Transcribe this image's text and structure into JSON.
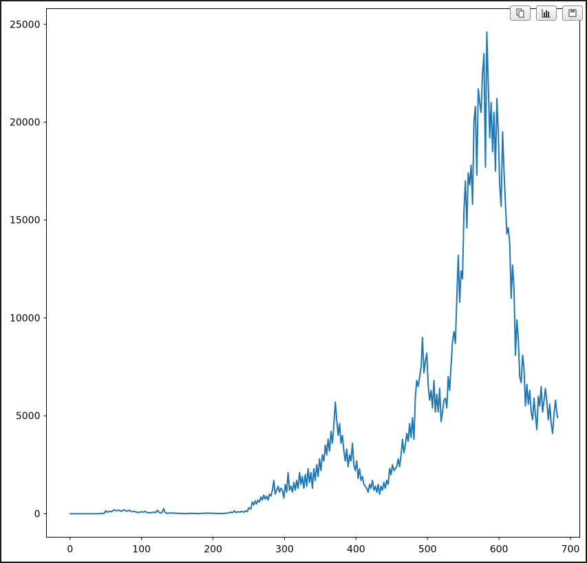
{
  "toolbar": {
    "buttons": [
      {
        "icon": "copy-icon"
      },
      {
        "icon": "bar-chart-icon"
      },
      {
        "icon": "save-icon"
      }
    ]
  },
  "chart_data": {
    "type": "line",
    "title": "",
    "xlabel": "",
    "ylabel": "",
    "xlim": [
      -33,
      713
    ],
    "ylim": [
      -1200,
      25800
    ],
    "xticks": [
      0,
      100,
      200,
      300,
      400,
      500,
      600,
      700
    ],
    "yticks": [
      0,
      5000,
      10000,
      15000,
      20000,
      25000
    ],
    "grid": false,
    "color": "#1f77b4",
    "series": [
      {
        "points": [
          [
            0,
            0
          ],
          [
            10,
            0
          ],
          [
            20,
            0
          ],
          [
            30,
            0
          ],
          [
            40,
            0
          ],
          [
            48,
            20
          ],
          [
            50,
            150
          ],
          [
            52,
            80
          ],
          [
            55,
            120
          ],
          [
            58,
            100
          ],
          [
            62,
            200
          ],
          [
            65,
            150
          ],
          [
            68,
            180
          ],
          [
            72,
            120
          ],
          [
            75,
            200
          ],
          [
            78,
            160
          ],
          [
            80,
            130
          ],
          [
            83,
            180
          ],
          [
            86,
            100
          ],
          [
            90,
            120
          ],
          [
            95,
            60
          ],
          [
            100,
            100
          ],
          [
            102,
            80
          ],
          [
            105,
            120
          ],
          [
            108,
            60
          ],
          [
            112,
            40
          ],
          [
            116,
            80
          ],
          [
            120,
            60
          ],
          [
            122,
            180
          ],
          [
            125,
            60
          ],
          [
            128,
            30
          ],
          [
            131,
            260
          ],
          [
            133,
            60
          ],
          [
            136,
            20
          ],
          [
            140,
            40
          ],
          [
            150,
            20
          ],
          [
            160,
            10
          ],
          [
            170,
            20
          ],
          [
            180,
            10
          ],
          [
            190,
            30
          ],
          [
            200,
            20
          ],
          [
            210,
            10
          ],
          [
            220,
            30
          ],
          [
            225,
            80
          ],
          [
            227,
            40
          ],
          [
            230,
            150
          ],
          [
            232,
            60
          ],
          [
            235,
            100
          ],
          [
            238,
            80
          ],
          [
            240,
            130
          ],
          [
            243,
            80
          ],
          [
            246,
            150
          ],
          [
            248,
            100
          ],
          [
            250,
            300
          ],
          [
            253,
            250
          ],
          [
            255,
            600
          ],
          [
            257,
            450
          ],
          [
            259,
            650
          ],
          [
            261,
            500
          ],
          [
            263,
            700
          ],
          [
            265,
            600
          ],
          [
            267,
            850
          ],
          [
            269,
            700
          ],
          [
            271,
            950
          ],
          [
            273,
            750
          ],
          [
            275,
            900
          ],
          [
            277,
            700
          ],
          [
            279,
            1000
          ],
          [
            281,
            900
          ],
          [
            283,
            1200
          ],
          [
            285,
            1700
          ],
          [
            287,
            1000
          ],
          [
            289,
            1200
          ],
          [
            291,
            1400
          ],
          [
            293,
            1100
          ],
          [
            295,
            1300
          ],
          [
            297,
            1200
          ],
          [
            299,
            800
          ],
          [
            301,
            1500
          ],
          [
            303,
            1100
          ],
          [
            305,
            2100
          ],
          [
            307,
            1200
          ],
          [
            309,
            1400
          ],
          [
            311,
            1100
          ],
          [
            313,
            1600
          ],
          [
            315,
            1200
          ],
          [
            317,
            1700
          ],
          [
            319,
            1300
          ],
          [
            321,
            2100
          ],
          [
            323,
            1500
          ],
          [
            325,
            1900
          ],
          [
            327,
            1300
          ],
          [
            329,
            2000
          ],
          [
            331,
            1400
          ],
          [
            333,
            2300
          ],
          [
            335,
            1600
          ],
          [
            337,
            2100
          ],
          [
            339,
            1300
          ],
          [
            341,
            2300
          ],
          [
            343,
            1700
          ],
          [
            345,
            2500
          ],
          [
            347,
            1900
          ],
          [
            349,
            2800
          ],
          [
            351,
            2200
          ],
          [
            353,
            3000
          ],
          [
            355,
            2700
          ],
          [
            357,
            3500
          ],
          [
            359,
            3000
          ],
          [
            361,
            3800
          ],
          [
            363,
            3200
          ],
          [
            365,
            4200
          ],
          [
            367,
            3600
          ],
          [
            369,
            4500
          ],
          [
            371,
            5700
          ],
          [
            373,
            4800
          ],
          [
            375,
            4000
          ],
          [
            377,
            4600
          ],
          [
            379,
            3600
          ],
          [
            381,
            4000
          ],
          [
            383,
            3200
          ],
          [
            385,
            2700
          ],
          [
            387,
            3300
          ],
          [
            389,
            2400
          ],
          [
            391,
            3000
          ],
          [
            393,
            2700
          ],
          [
            395,
            3600
          ],
          [
            397,
            2500
          ],
          [
            399,
            2200
          ],
          [
            401,
            2700
          ],
          [
            403,
            1800
          ],
          [
            405,
            2300
          ],
          [
            407,
            1700
          ],
          [
            409,
            1900
          ],
          [
            411,
            1500
          ],
          [
            413,
            1400
          ],
          [
            415,
            1300
          ],
          [
            417,
            1100
          ],
          [
            419,
            1500
          ],
          [
            421,
            1300
          ],
          [
            423,
            1700
          ],
          [
            425,
            1200
          ],
          [
            427,
            1400
          ],
          [
            429,
            1100
          ],
          [
            431,
            1500
          ],
          [
            433,
            1000
          ],
          [
            435,
            1400
          ],
          [
            437,
            1200
          ],
          [
            439,
            1600
          ],
          [
            441,
            1300
          ],
          [
            443,
            1700
          ],
          [
            445,
            1500
          ],
          [
            447,
            2300
          ],
          [
            449,
            2000
          ],
          [
            451,
            2500
          ],
          [
            453,
            2200
          ],
          [
            455,
            2300
          ],
          [
            457,
            2400
          ],
          [
            459,
            2800
          ],
          [
            461,
            2400
          ],
          [
            463,
            3000
          ],
          [
            465,
            3800
          ],
          [
            467,
            3100
          ],
          [
            469,
            3500
          ],
          [
            471,
            4100
          ],
          [
            473,
            3700
          ],
          [
            475,
            4600
          ],
          [
            477,
            3900
          ],
          [
            479,
            4900
          ],
          [
            481,
            3800
          ],
          [
            483,
            6000
          ],
          [
            485,
            6800
          ],
          [
            487,
            6500
          ],
          [
            489,
            7000
          ],
          [
            491,
            7500
          ],
          [
            493,
            9000
          ],
          [
            495,
            7200
          ],
          [
            497,
            7800
          ],
          [
            499,
            8200
          ],
          [
            501,
            6500
          ],
          [
            503,
            5800
          ],
          [
            505,
            6300
          ],
          [
            507,
            5400
          ],
          [
            509,
            6800
          ],
          [
            511,
            5200
          ],
          [
            513,
            6100
          ],
          [
            515,
            5200
          ],
          [
            517,
            6400
          ],
          [
            519,
            4700
          ],
          [
            521,
            5200
          ],
          [
            523,
            5800
          ],
          [
            525,
            5900
          ],
          [
            527,
            5400
          ],
          [
            529,
            7000
          ],
          [
            531,
            6300
          ],
          [
            533,
            7600
          ],
          [
            535,
            8800
          ],
          [
            537,
            9300
          ],
          [
            539,
            8700
          ],
          [
            541,
            11000
          ],
          [
            543,
            13200
          ],
          [
            545,
            10800
          ],
          [
            547,
            12400
          ],
          [
            549,
            12000
          ],
          [
            551,
            15500
          ],
          [
            553,
            17000
          ],
          [
            555,
            14600
          ],
          [
            557,
            17400
          ],
          [
            559,
            16800
          ],
          [
            561,
            17800
          ],
          [
            563,
            15800
          ],
          [
            565,
            20000
          ],
          [
            567,
            20800
          ],
          [
            569,
            17300
          ],
          [
            571,
            21700
          ],
          [
            573,
            21000
          ],
          [
            575,
            20500
          ],
          [
            577,
            22500
          ],
          [
            579,
            23500
          ],
          [
            581,
            17700
          ],
          [
            583,
            24600
          ],
          [
            585,
            22000
          ],
          [
            587,
            19200
          ],
          [
            589,
            21000
          ],
          [
            591,
            18500
          ],
          [
            593,
            20500
          ],
          [
            595,
            17500
          ],
          [
            597,
            21200
          ],
          [
            599,
            19500
          ],
          [
            601,
            16800
          ],
          [
            603,
            15700
          ],
          [
            605,
            19500
          ],
          [
            607,
            17500
          ],
          [
            609,
            15800
          ],
          [
            611,
            14300
          ],
          [
            613,
            14600
          ],
          [
            615,
            13800
          ],
          [
            617,
            11000
          ],
          [
            619,
            12700
          ],
          [
            621,
            11500
          ],
          [
            623,
            8100
          ],
          [
            625,
            9900
          ],
          [
            627,
            8900
          ],
          [
            629,
            7000
          ],
          [
            631,
            6700
          ],
          [
            633,
            8100
          ],
          [
            635,
            7400
          ],
          [
            637,
            5500
          ],
          [
            639,
            6600
          ],
          [
            641,
            5600
          ],
          [
            643,
            6300
          ],
          [
            645,
            5200
          ],
          [
            647,
            4800
          ],
          [
            649,
            5900
          ],
          [
            651,
            5000
          ],
          [
            653,
            4300
          ],
          [
            655,
            6000
          ],
          [
            657,
            5500
          ],
          [
            659,
            6500
          ],
          [
            661,
            5200
          ],
          [
            663,
            5800
          ],
          [
            665,
            6400
          ],
          [
            667,
            5700
          ],
          [
            669,
            4800
          ],
          [
            671,
            5600
          ],
          [
            673,
            4600
          ],
          [
            675,
            4100
          ],
          [
            677,
            5100
          ],
          [
            679,
            5800
          ],
          [
            681,
            5100
          ],
          [
            682,
            4900
          ]
        ]
      }
    ]
  }
}
